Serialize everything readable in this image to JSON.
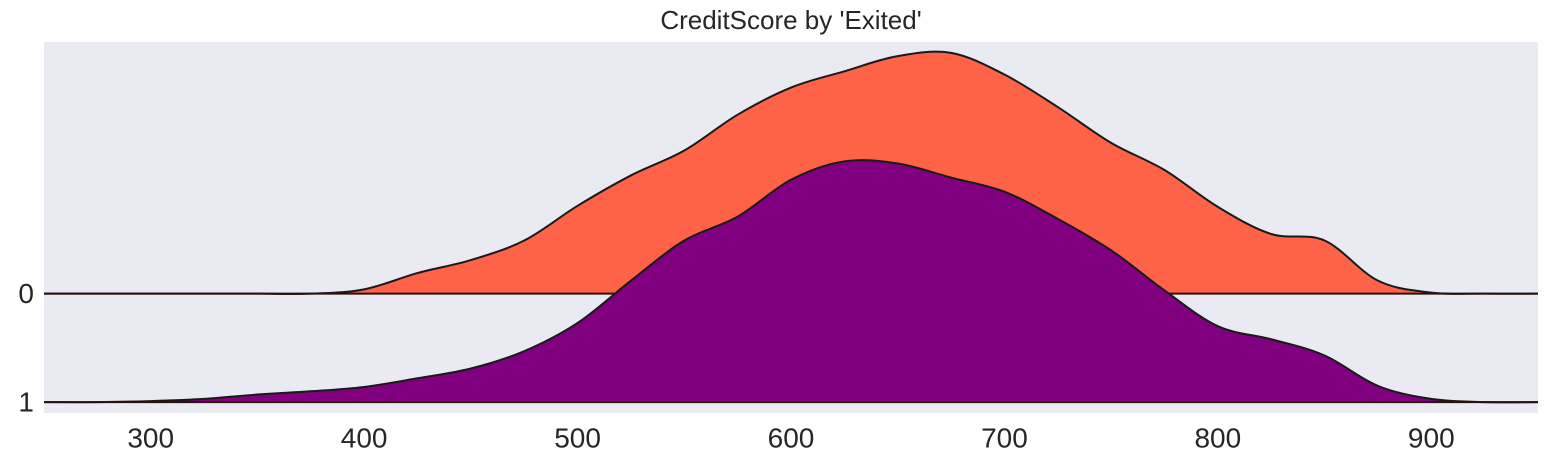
{
  "chart_data": {
    "type": "ridgeline",
    "title": "CreditScore by 'Exited'",
    "categories": [
      "0",
      "1"
    ],
    "x": [
      250,
      275,
      300,
      325,
      350,
      375,
      400,
      425,
      450,
      475,
      500,
      525,
      550,
      575,
      600,
      625,
      650,
      675,
      700,
      725,
      750,
      775,
      800,
      825,
      850,
      875,
      900,
      925,
      950
    ],
    "series": [
      {
        "name": "0",
        "color": "#ff6347",
        "values": [
          0,
          0,
          0,
          0,
          0,
          0,
          0.04,
          0.19,
          0.31,
          0.49,
          0.81,
          1.09,
          1.32,
          1.65,
          1.9,
          2.05,
          2.19,
          2.22,
          2.02,
          1.72,
          1.39,
          1.14,
          0.8,
          0.55,
          0.49,
          0.12,
          0.01,
          0,
          0
        ]
      },
      {
        "name": "1",
        "color": "#800080",
        "values": [
          0,
          0,
          0.01,
          0.03,
          0.07,
          0.1,
          0.14,
          0.22,
          0.31,
          0.47,
          0.73,
          1.12,
          1.49,
          1.71,
          2.05,
          2.22,
          2.2,
          2.07,
          1.94,
          1.69,
          1.4,
          1.03,
          0.7,
          0.58,
          0.43,
          0.15,
          0.03,
          0,
          0
        ]
      }
    ],
    "xlim": [
      250,
      950
    ],
    "xticks": [
      300,
      400,
      500,
      600,
      700,
      800,
      900
    ],
    "ylim": [
      -0.1,
      3.32
    ],
    "grid": false
  }
}
